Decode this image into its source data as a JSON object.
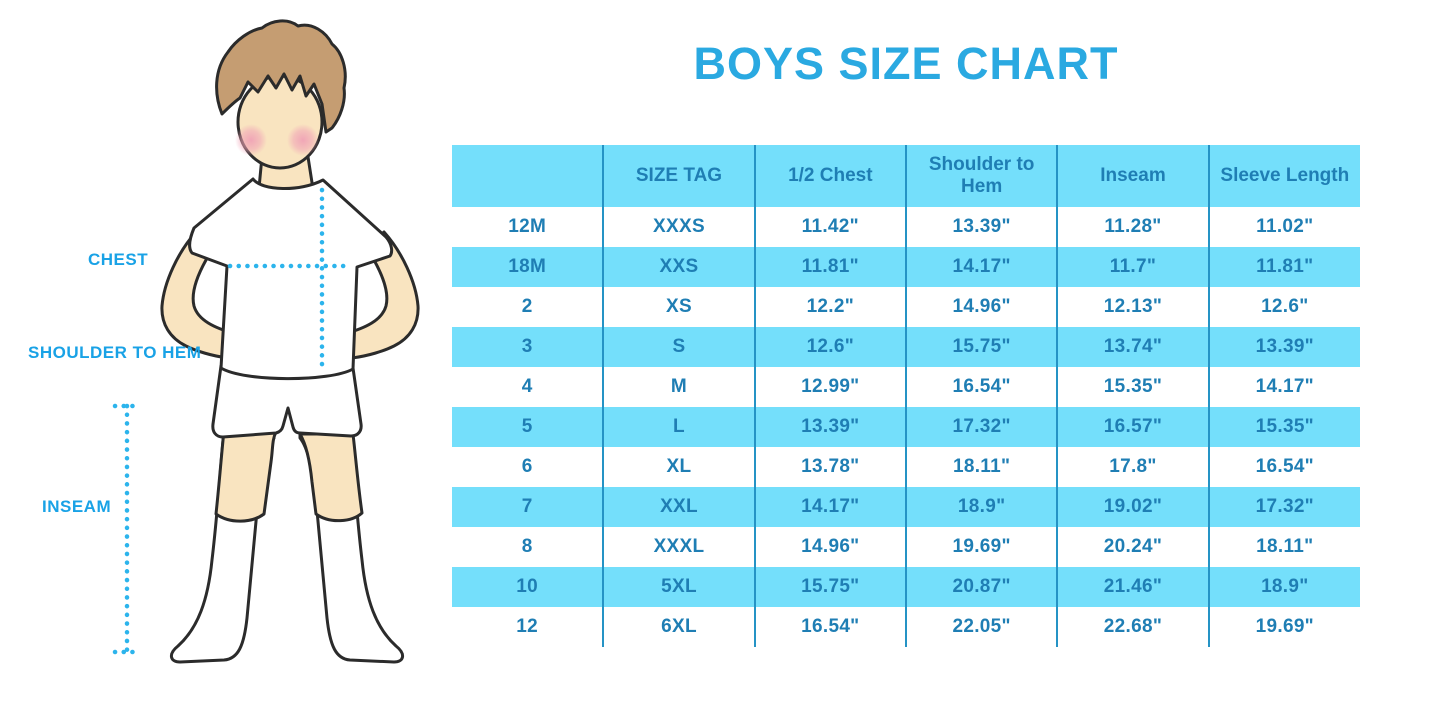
{
  "title": "BOYS SIZE CHART",
  "figure": {
    "labels": {
      "chest": "CHEST",
      "shoulder_to_hem": "SHOULDER TO HEM",
      "inseam": "INSEAM"
    }
  },
  "colors": {
    "title_blue": "#2AA9E1",
    "label_blue": "#19A2E6",
    "table_stripe_blue": "#74DFFB",
    "table_text_blue": "#1F7EB4",
    "table_line_blue": "#2593C5",
    "dotted_line_cyan": "#2CB4EC",
    "skin": "#F9E4C0",
    "hair_brown": "#C59D72",
    "cheek_pink": "#F0A3B6"
  },
  "chart_data": {
    "type": "table",
    "title": "BOYS SIZE CHART",
    "columns": [
      "",
      "SIZE TAG",
      "1/2 Chest",
      "Shoulder to Hem",
      "Inseam",
      "Sleeve Length"
    ],
    "rows": [
      [
        "12M",
        "XXXS",
        "11.42\"",
        "13.39\"",
        "11.28\"",
        "11.02\""
      ],
      [
        "18M",
        "XXS",
        "11.81\"",
        "14.17\"",
        "11.7\"",
        "11.81\""
      ],
      [
        "2",
        "XS",
        "12.2\"",
        "14.96\"",
        "12.13\"",
        "12.6\""
      ],
      [
        "3",
        "S",
        "12.6\"",
        "15.75\"",
        "13.74\"",
        "13.39\""
      ],
      [
        "4",
        "M",
        "12.99\"",
        "16.54\"",
        "15.35\"",
        "14.17\""
      ],
      [
        "5",
        "L",
        "13.39\"",
        "17.32\"",
        "16.57\"",
        "15.35\""
      ],
      [
        "6",
        "XL",
        "13.78\"",
        "18.11\"",
        "17.8\"",
        "16.54\""
      ],
      [
        "7",
        "XXL",
        "14.17\"",
        "18.9\"",
        "19.02\"",
        "17.32\""
      ],
      [
        "8",
        "XXXL",
        "14.96\"",
        "19.69\"",
        "20.24\"",
        "18.11\""
      ],
      [
        "10",
        "5XL",
        "15.75\"",
        "20.87\"",
        "21.46\"",
        "18.9\""
      ],
      [
        "12",
        "6XL",
        "16.54\"",
        "22.05\"",
        "22.68\"",
        "19.69\""
      ]
    ]
  }
}
